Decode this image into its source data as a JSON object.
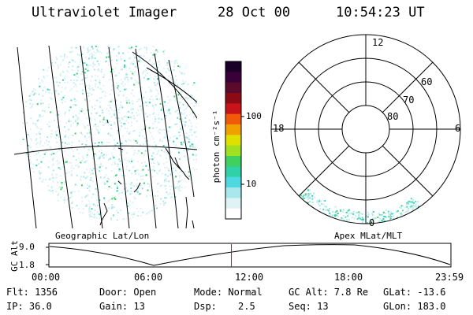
{
  "header": {
    "title": "Ultraviolet Imager",
    "date": "28 Oct 00",
    "time": "10:54:23 UT"
  },
  "left_panel": {
    "caption": "Geographic Lat/Lon"
  },
  "right_panel": {
    "caption": "Apex MLat/MLT",
    "mlt_labels": {
      "top": "12",
      "left": "18",
      "right": "6",
      "bottom": "0"
    },
    "lat_labels": [
      "60",
      "70",
      "80"
    ]
  },
  "colorbar": {
    "unit_label": "photon cm⁻²s⁻¹",
    "ticks": [
      "100",
      "10"
    ],
    "colors": [
      "#1a0028",
      "#3a003a",
      "#5a0a2a",
      "#8c0a14",
      "#c81418",
      "#f05a0a",
      "#f0a000",
      "#e0e000",
      "#a0e020",
      "#40d060",
      "#30d0a8",
      "#50d8e0",
      "#a8e8ec",
      "#dff2f4",
      "#ffffff"
    ]
  },
  "timeline": {
    "ylabel": "GC Alt",
    "y_ticks": [
      "9.0",
      "1.8"
    ],
    "x_ticks": [
      "00:00",
      "06:00",
      "12:00",
      "18:00",
      "23:59"
    ],
    "current_time_fraction": 0.454
  },
  "footer": {
    "row1": {
      "flt": "Flt: 1356",
      "door": "Door: Open",
      "mode": "Mode: Normal",
      "gcalt": "GC Alt: 7.8 Re",
      "glat": "GLat: -13.6"
    },
    "row2": {
      "ip": "IP: 36.0",
      "gain": "Gain: 13",
      "dsp_label": "Dsp:",
      "dsp_value": "2.5",
      "seq": "Seq: 13",
      "glon": "GLon: 183.0"
    }
  }
}
